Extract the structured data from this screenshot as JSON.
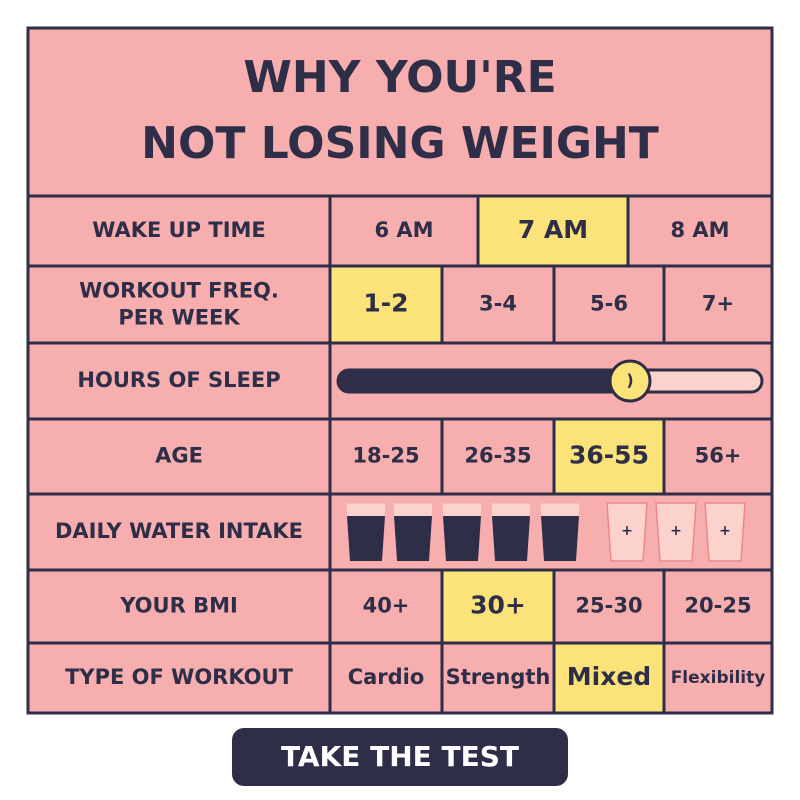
{
  "title_lines": [
    "WHY YOU'RE",
    "NOT LOSING WEIGHT"
  ],
  "rows": [
    {
      "label": "WAKE UP TIME",
      "options": [
        "6 AM",
        "7 AM",
        "8 AM"
      ],
      "selected": 1
    },
    {
      "label": "WORKOUT FREQ.\nPER WEEK",
      "options": [
        "1-2",
        "3-4",
        "5-6",
        "7+"
      ],
      "selected": 0
    },
    {
      "label": "HOURS OF SLEEP",
      "slider_knob": ")"
    },
    {
      "label": "AGE",
      "options": [
        "18-25",
        "26-35",
        "36-55",
        "56+"
      ],
      "selected": 2
    },
    {
      "label": "DAILY WATER INTAKE",
      "glasses": [
        {
          "state": "filled"
        },
        {
          "state": "filled"
        },
        {
          "state": "filled"
        },
        {
          "state": "filled"
        },
        {
          "state": "filled"
        },
        {
          "state": "empty",
          "label": "+"
        },
        {
          "state": "empty",
          "label": "+"
        },
        {
          "state": "empty",
          "label": "+"
        }
      ]
    },
    {
      "label": "YOUR BMI",
      "options": [
        "40+",
        "30+",
        "25-30",
        "20-25"
      ],
      "selected": 1
    },
    {
      "label": "TYPE OF WORKOUT",
      "options": [
        "Cardio",
        "Strength",
        "Mixed",
        "Flexibility"
      ],
      "selected": 2
    }
  ],
  "button": "TAKE THE TEST"
}
